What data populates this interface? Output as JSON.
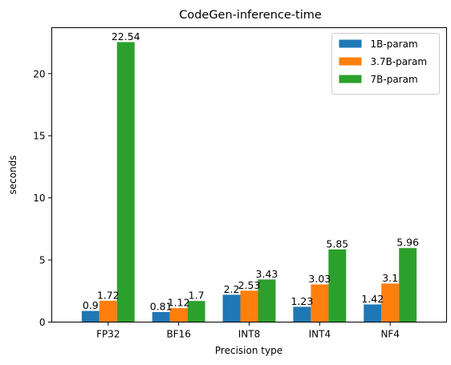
{
  "chart_data": {
    "type": "bar",
    "title": "CodeGen-inference-time",
    "xlabel": "Precision type",
    "ylabel": "seconds",
    "categories": [
      "FP32",
      "BF16",
      "INT8",
      "INT4",
      "NF4"
    ],
    "ylim": [
      0,
      23.7
    ],
    "yticks": [
      0,
      5,
      10,
      15,
      20
    ],
    "grid": false,
    "legend": "top-right",
    "series": [
      {
        "name": "1B-param",
        "color": "#1f77b4",
        "values": [
          0.9,
          0.81,
          2.2,
          1.23,
          1.42
        ],
        "labels": [
          "0.9",
          "0.81",
          "2.2",
          "1.23",
          "1.42"
        ]
      },
      {
        "name": "3.7B-param",
        "color": "#ff7f0e",
        "values": [
          1.72,
          1.12,
          2.53,
          3.03,
          3.1
        ],
        "labels": [
          "1.72",
          "1.12",
          "2.53",
          "3.03",
          "3.1"
        ]
      },
      {
        "name": "7B-param",
        "color": "#2ca02c",
        "values": [
          22.54,
          1.7,
          3.43,
          5.85,
          5.96
        ],
        "labels": [
          "22.54",
          "1.7",
          "3.43",
          "5.85",
          "5.96"
        ]
      }
    ]
  }
}
